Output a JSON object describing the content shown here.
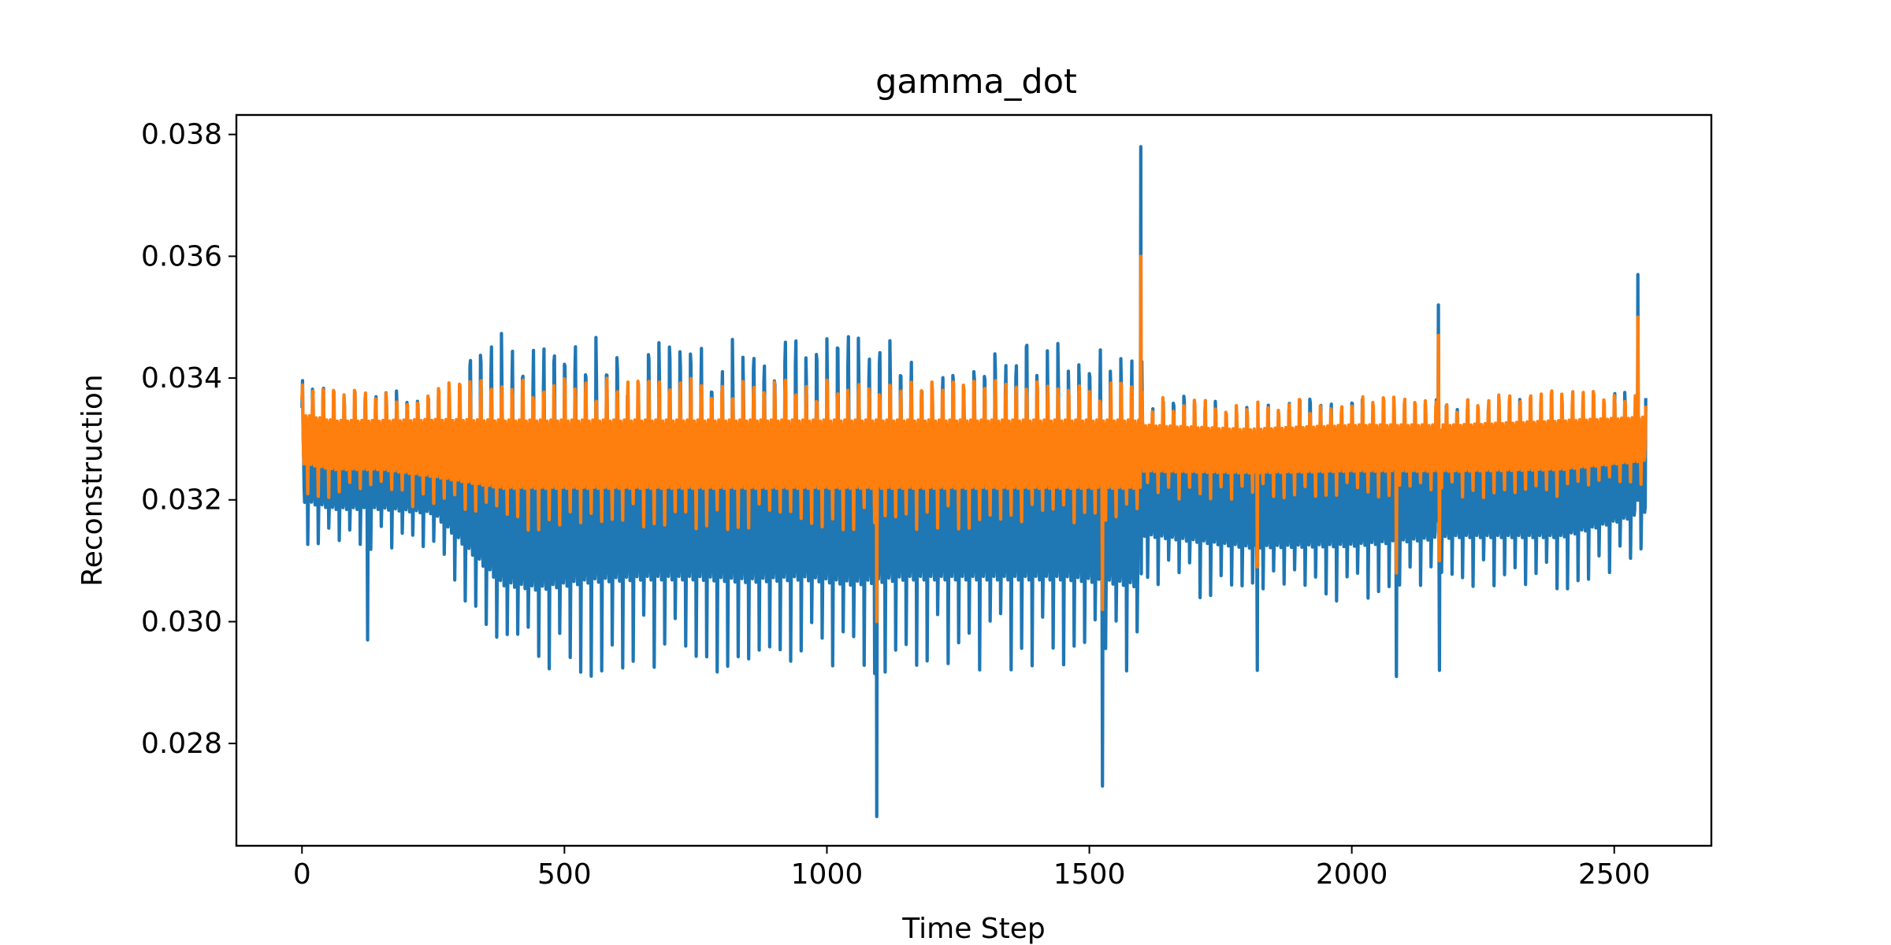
{
  "chart_data": {
    "type": "line",
    "title": "gamma_dot",
    "xlabel": "Time Step",
    "ylabel": "Reconstruction",
    "xlim": [
      -125,
      2685
    ],
    "ylim": [
      0.02632,
      0.03832
    ],
    "xticks": [
      0,
      500,
      1000,
      1500,
      2000,
      2500
    ],
    "xtick_labels": [
      "0",
      "500",
      "1000",
      "1500",
      "2000",
      "2500"
    ],
    "yticks": [
      0.028,
      0.03,
      0.032,
      0.034,
      0.036,
      0.038
    ],
    "ytick_labels": [
      "0.028",
      "0.030",
      "0.032",
      "0.034",
      "0.036",
      "0.038"
    ],
    "grid": false,
    "legend": "none",
    "x_range": [
      0,
      2560
    ],
    "oscillation_period": 20,
    "series": [
      {
        "color": "#1f77b4",
        "envelope": {
          "x": [
            0,
            60,
            150,
            250,
            380,
            450,
            550,
            650,
            750,
            850,
            950,
            1050,
            1150,
            1250,
            1350,
            1450,
            1550,
            1600,
            1601,
            1800,
            2000,
            2200,
            2400,
            2560
          ],
          "peak_max": [
            0.034,
            0.0338,
            0.0338,
            0.0338,
            0.0348,
            0.0345,
            0.0347,
            0.0346,
            0.0346,
            0.0347,
            0.0346,
            0.0348,
            0.0346,
            0.0346,
            0.0346,
            0.0346,
            0.0346,
            0.0344,
            0.0338,
            0.0336,
            0.0337,
            0.0337,
            0.0337,
            0.0338
          ],
          "trough_min": [
            0.0312,
            0.0311,
            0.0311,
            0.031,
            0.029,
            0.029,
            0.0291,
            0.0292,
            0.0292,
            0.0291,
            0.0292,
            0.029,
            0.0292,
            0.0292,
            0.0292,
            0.0292,
            0.0291,
            0.0291,
            0.0305,
            0.0303,
            0.0303,
            0.0305,
            0.0305,
            0.031
          ]
        },
        "spikes": [
          {
            "x": 125,
            "y": 0.0297
          },
          {
            "x": 1095,
            "y": 0.0268
          },
          {
            "x": 1525,
            "y": 0.0273
          },
          {
            "x": 1598,
            "y": 0.0378
          },
          {
            "x": 1820,
            "y": 0.0292
          },
          {
            "x": 2085,
            "y": 0.0291
          },
          {
            "x": 2165,
            "y": 0.0352
          },
          {
            "x": 2167,
            "y": 0.0292
          },
          {
            "x": 2545,
            "y": 0.0357
          }
        ]
      },
      {
        "color": "#ff7f0e",
        "envelope": {
          "x": [
            0,
            60,
            150,
            250,
            380,
            450,
            550,
            650,
            750,
            850,
            950,
            1050,
            1150,
            1250,
            1350,
            1450,
            1550,
            1600,
            1601,
            1800,
            2000,
            2200,
            2400,
            2560
          ],
          "peak_max": [
            0.0339,
            0.0338,
            0.0338,
            0.0339,
            0.034,
            0.034,
            0.034,
            0.034,
            0.034,
            0.034,
            0.034,
            0.034,
            0.034,
            0.034,
            0.034,
            0.034,
            0.034,
            0.034,
            0.0337,
            0.0336,
            0.0337,
            0.0337,
            0.0338,
            0.0338
          ],
          "trough_min": [
            0.0321,
            0.032,
            0.032,
            0.0318,
            0.0315,
            0.0315,
            0.0315,
            0.0315,
            0.0315,
            0.0315,
            0.0315,
            0.0315,
            0.0315,
            0.0315,
            0.0315,
            0.0315,
            0.0315,
            0.0315,
            0.032,
            0.032,
            0.032,
            0.032,
            0.032,
            0.0322
          ]
        },
        "spikes": [
          {
            "x": 1095,
            "y": 0.03
          },
          {
            "x": 1525,
            "y": 0.0302
          },
          {
            "x": 1598,
            "y": 0.036
          },
          {
            "x": 1820,
            "y": 0.0309
          },
          {
            "x": 2085,
            "y": 0.0308
          },
          {
            "x": 2165,
            "y": 0.0347
          },
          {
            "x": 2167,
            "y": 0.031
          },
          {
            "x": 2545,
            "y": 0.035
          }
        ]
      }
    ]
  }
}
